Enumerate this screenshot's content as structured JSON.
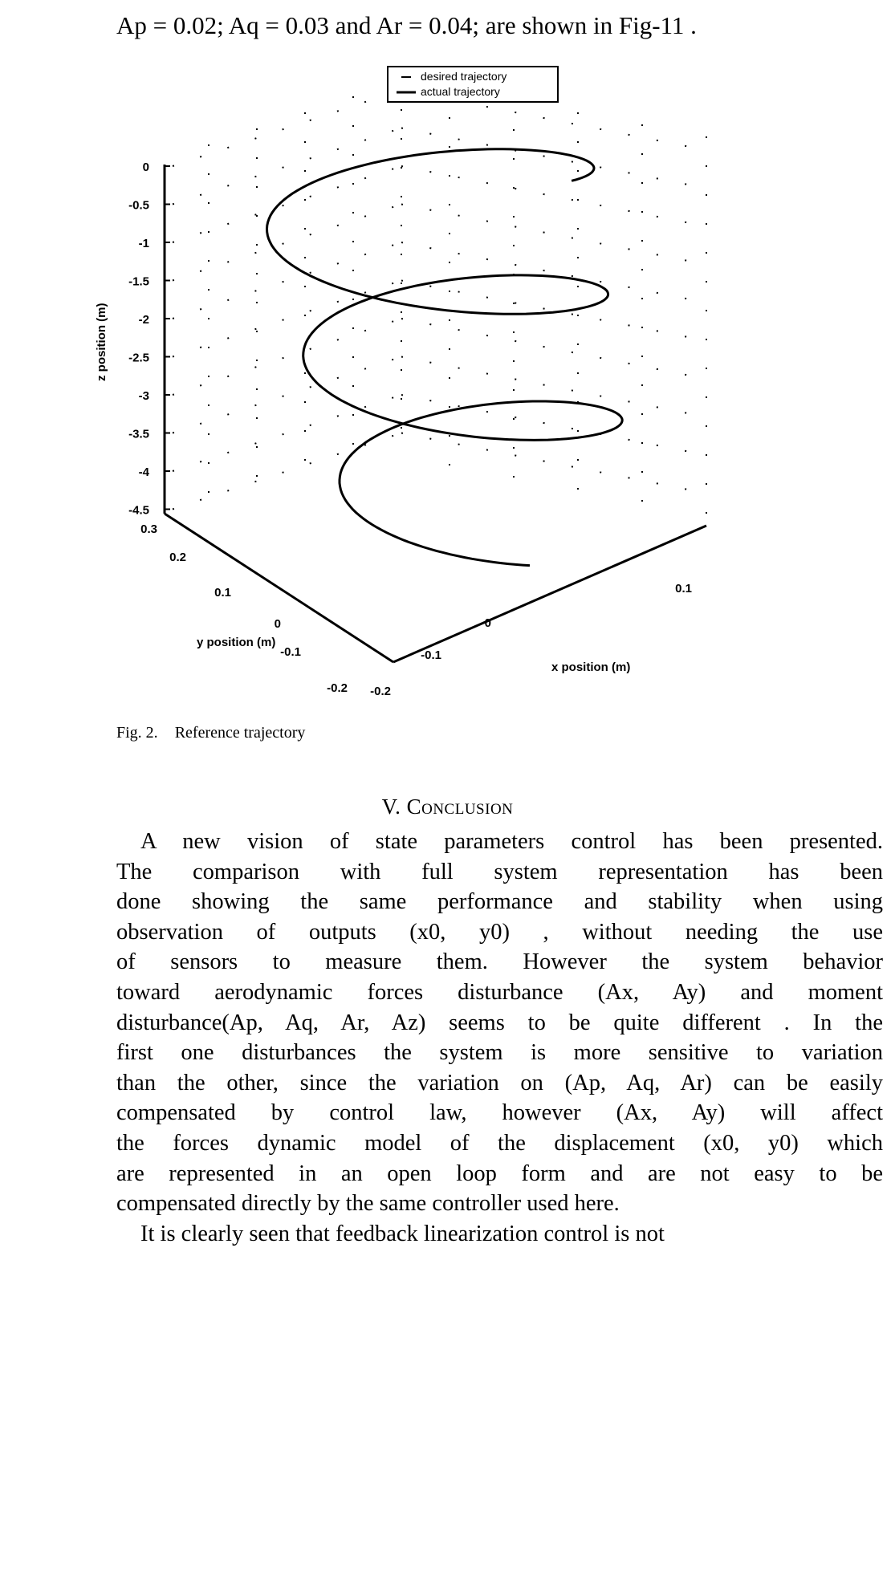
{
  "top_text": "Ap = 0.02; Aq = 0.03 and  Ar = 0.04; are shown in Fig-11 .",
  "figure": {
    "caption_number": "Fig. 2.",
    "caption_text": "Reference trajectory"
  },
  "chart_data": {
    "type": "line",
    "subtype": "3d-helix",
    "legend": [
      "desired trajectory",
      "actual trajectory"
    ],
    "legend_placement": "top-center",
    "xlabel": "x position (m)",
    "ylabel": "y position (m)",
    "zlabel": "z position (m)",
    "x_ticks": [
      "-0.2",
      "-0.1",
      "0",
      "0.1"
    ],
    "y_ticks": [
      "-0.2",
      "-0.1",
      "0",
      "0.1",
      "0.2",
      "0.3"
    ],
    "z_ticks": [
      "0",
      "-0.5",
      "-1",
      "-1.5",
      "-2",
      "-2.5",
      "-3",
      "-3.5",
      "-4",
      "-4.5"
    ],
    "xlim": [
      -0.2,
      0.15
    ],
    "ylim": [
      -0.2,
      0.3
    ],
    "zlim": [
      -4.5,
      0
    ],
    "grid": true,
    "series": [
      {
        "name": "actual trajectory",
        "description_values": {
          "radius": 0.1,
          "turns": 2.8,
          "z_start": -0.2,
          "z_end": -4.3
        }
      }
    ]
  },
  "section": {
    "heading_prefix": "V. ",
    "heading": "Conclusion"
  },
  "paragraph1_lines": [
    "A new vision of state parameters control has been presented.",
    "The comparison with full system representation has been",
    "done showing the same performance and stability when using",
    "observation of outputs (x0, y0) , without needing the use",
    "of sensors to measure them. However the system behavior",
    "toward aerodynamic forces disturbance (Ax, Ay) and moment",
    "disturbance(Ap, Aq, Ar, Az) seems to be quite different . In the",
    "first one disturbances the system is more sensitive to variation",
    "than the other, since the variation on (Ap, Aq, Ar) can be easily",
    "compensated by control law, however (Ax, Ay) will affect",
    "the forces dynamic model of the displacement (x0, y0) which",
    "are represented in an open loop form and are not easy to be",
    "compensated directly by the same controller used here."
  ],
  "paragraph2_lines": [
    "It is clearly seen that feedback linearization control is not"
  ]
}
